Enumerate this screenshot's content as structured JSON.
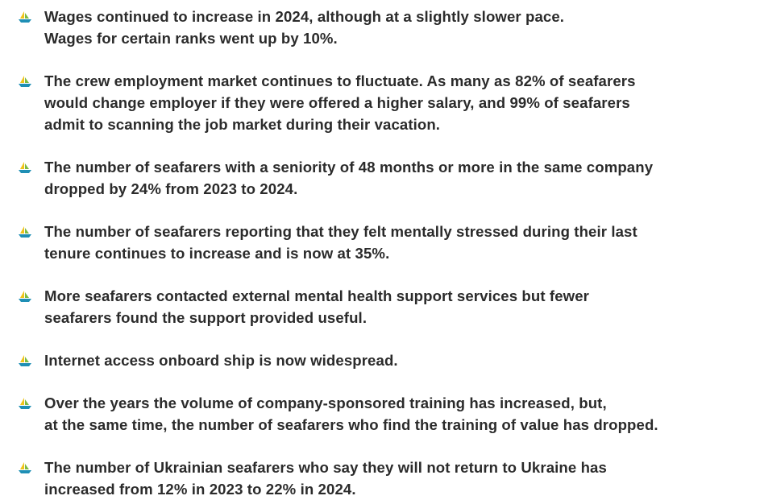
{
  "items": [
    {
      "lines": [
        "Wages continued to increase in 2024, although at a slightly slower pace.",
        "Wages for certain ranks went up by 10%."
      ]
    },
    {
      "lines": [
        "The crew employment market continues to fluctuate. As many as 82% of seafarers",
        "would change employer if they were offered a higher salary, and 99% of seafarers",
        "admit to scanning the job market during their vacation."
      ]
    },
    {
      "lines": [
        "The number of seafarers with a seniority of 48 months or more in the same company",
        "dropped by 24% from 2023 to 2024."
      ]
    },
    {
      "lines": [
        "The number of seafarers reporting that they felt mentally stressed during their last",
        "tenure continues to increase and is now at 35%."
      ]
    },
    {
      "lines": [
        "More seafarers contacted external mental health support services but fewer",
        "seafarers found the support provided useful."
      ]
    },
    {
      "lines": [
        "Internet access onboard ship is now widespread."
      ]
    },
    {
      "lines": [
        "Over the years the volume of company-sponsored training has increased, but,",
        "at the same time, the number of seafarers who find the training of value has dropped."
      ]
    },
    {
      "lines": [
        "The number of Ukrainian seafarers who say they will not return to Ukraine has",
        "increased from 12% in 2023 to 22% in 2024."
      ]
    }
  ]
}
